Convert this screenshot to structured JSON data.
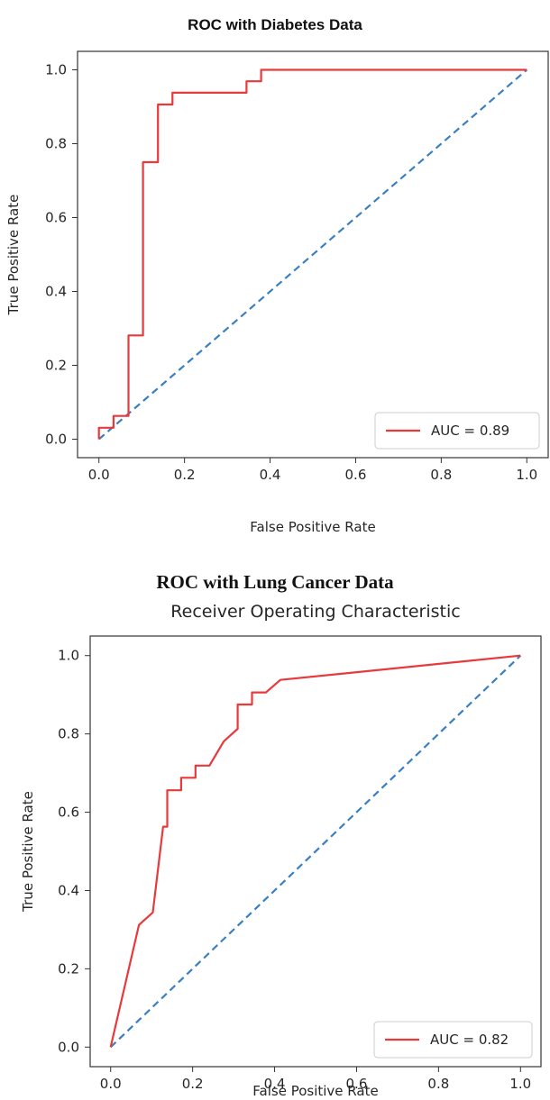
{
  "chart_data": [
    {
      "type": "line",
      "caption": "ROC with Diabetes Data",
      "title": "",
      "xlabel": "False Positive Rate",
      "ylabel": "True Positive Rate",
      "xlim": [
        -0.05,
        1.05
      ],
      "ylim": [
        -0.05,
        1.05
      ],
      "xticks": [
        "0.0",
        "0.2",
        "0.4",
        "0.6",
        "0.8",
        "1.0"
      ],
      "yticks": [
        "0.0",
        "0.2",
        "0.4",
        "0.6",
        "0.8",
        "1.0"
      ],
      "legend_position": "lower-right",
      "grid": false,
      "series": [
        {
          "name": "AUC = 0.89",
          "color": "#e8393b",
          "style": "solid",
          "x": [
            0.0,
            0.0,
            0.0,
            0.034,
            0.034,
            0.069,
            0.069,
            0.103,
            0.103,
            0.138,
            0.138,
            0.172,
            0.172,
            0.345,
            0.345,
            0.379,
            0.379,
            1.0
          ],
          "y": [
            0.0,
            0.031,
            0.031,
            0.031,
            0.063,
            0.063,
            0.281,
            0.281,
            0.75,
            0.75,
            0.906,
            0.906,
            0.938,
            0.938,
            0.969,
            0.969,
            1.0,
            1.0
          ]
        },
        {
          "name": "",
          "color": "#3a7fc1",
          "style": "dashed",
          "x": [
            0.0,
            1.0
          ],
          "y": [
            0.0,
            1.0
          ]
        }
      ]
    },
    {
      "type": "line",
      "caption": "ROC with Lung Cancer Data",
      "title": "Receiver Operating Characteristic",
      "xlabel": "False Positive Rate",
      "ylabel": "True Positive Rate",
      "xlim": [
        -0.05,
        1.05
      ],
      "ylim": [
        -0.05,
        1.05
      ],
      "xticks": [
        "0.0",
        "0.2",
        "0.4",
        "0.6",
        "0.8",
        "1.0"
      ],
      "yticks": [
        "0.0",
        "0.2",
        "0.4",
        "0.6",
        "0.8",
        "1.0"
      ],
      "legend_position": "lower-right",
      "grid": false,
      "series": [
        {
          "name": "AUC = 0.82",
          "color": "#e8393b",
          "style": "solid",
          "x": [
            0.0,
            0.069,
            0.103,
            0.128,
            0.138,
            0.138,
            0.172,
            0.172,
            0.207,
            0.207,
            0.241,
            0.276,
            0.31,
            0.31,
            0.345,
            0.345,
            0.379,
            0.414,
            1.0
          ],
          "y": [
            0.0,
            0.312,
            0.344,
            0.563,
            0.563,
            0.656,
            0.656,
            0.688,
            0.688,
            0.719,
            0.719,
            0.781,
            0.813,
            0.875,
            0.875,
            0.906,
            0.906,
            0.938,
            1.0
          ]
        },
        {
          "name": "",
          "color": "#3a7fc1",
          "style": "dashed",
          "x": [
            0.0,
            1.0
          ],
          "y": [
            0.0,
            1.0
          ]
        }
      ]
    }
  ]
}
